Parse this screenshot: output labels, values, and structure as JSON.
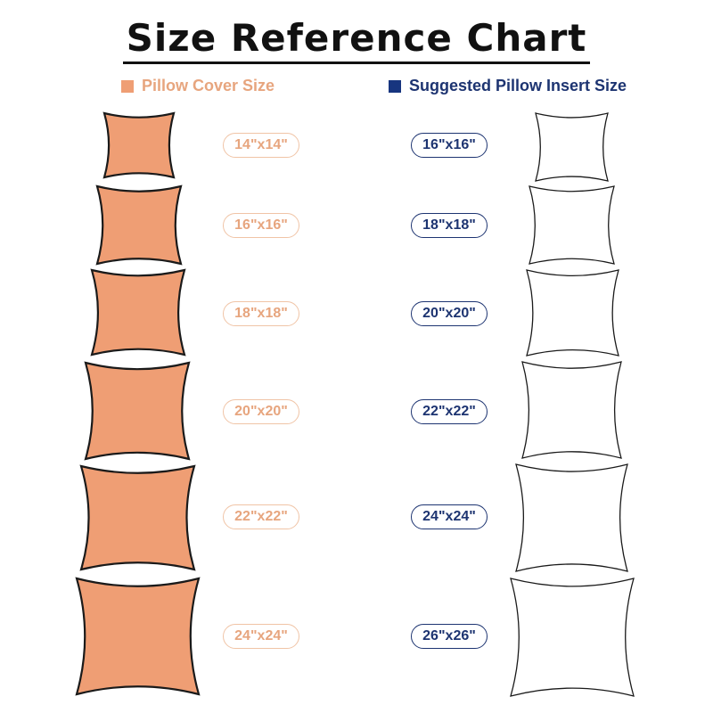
{
  "title": "Size Reference Chart",
  "legend": {
    "cover_label": "Pillow Cover Size",
    "insert_label": "Suggested Pillow Insert Size"
  },
  "colors": {
    "cover_fill": "#ef9e74",
    "cover_text": "#e7a57e",
    "insert_text": "#1d3471",
    "insert_swatch": "#17357f",
    "outline": "#1a1a1a"
  },
  "rows": [
    {
      "cover_size": "14\"x14\"",
      "insert_size": "16\"x16\""
    },
    {
      "cover_size": "16\"x16\"",
      "insert_size": "18\"x18\""
    },
    {
      "cover_size": "18\"x18\"",
      "insert_size": "20\"x20\""
    },
    {
      "cover_size": "20\"x20\"",
      "insert_size": "22\"x22\""
    },
    {
      "cover_size": "22\"x22\"",
      "insert_size": "24\"x24\""
    },
    {
      "cover_size": "24\"x24\"",
      "insert_size": "26\"x26\""
    }
  ]
}
